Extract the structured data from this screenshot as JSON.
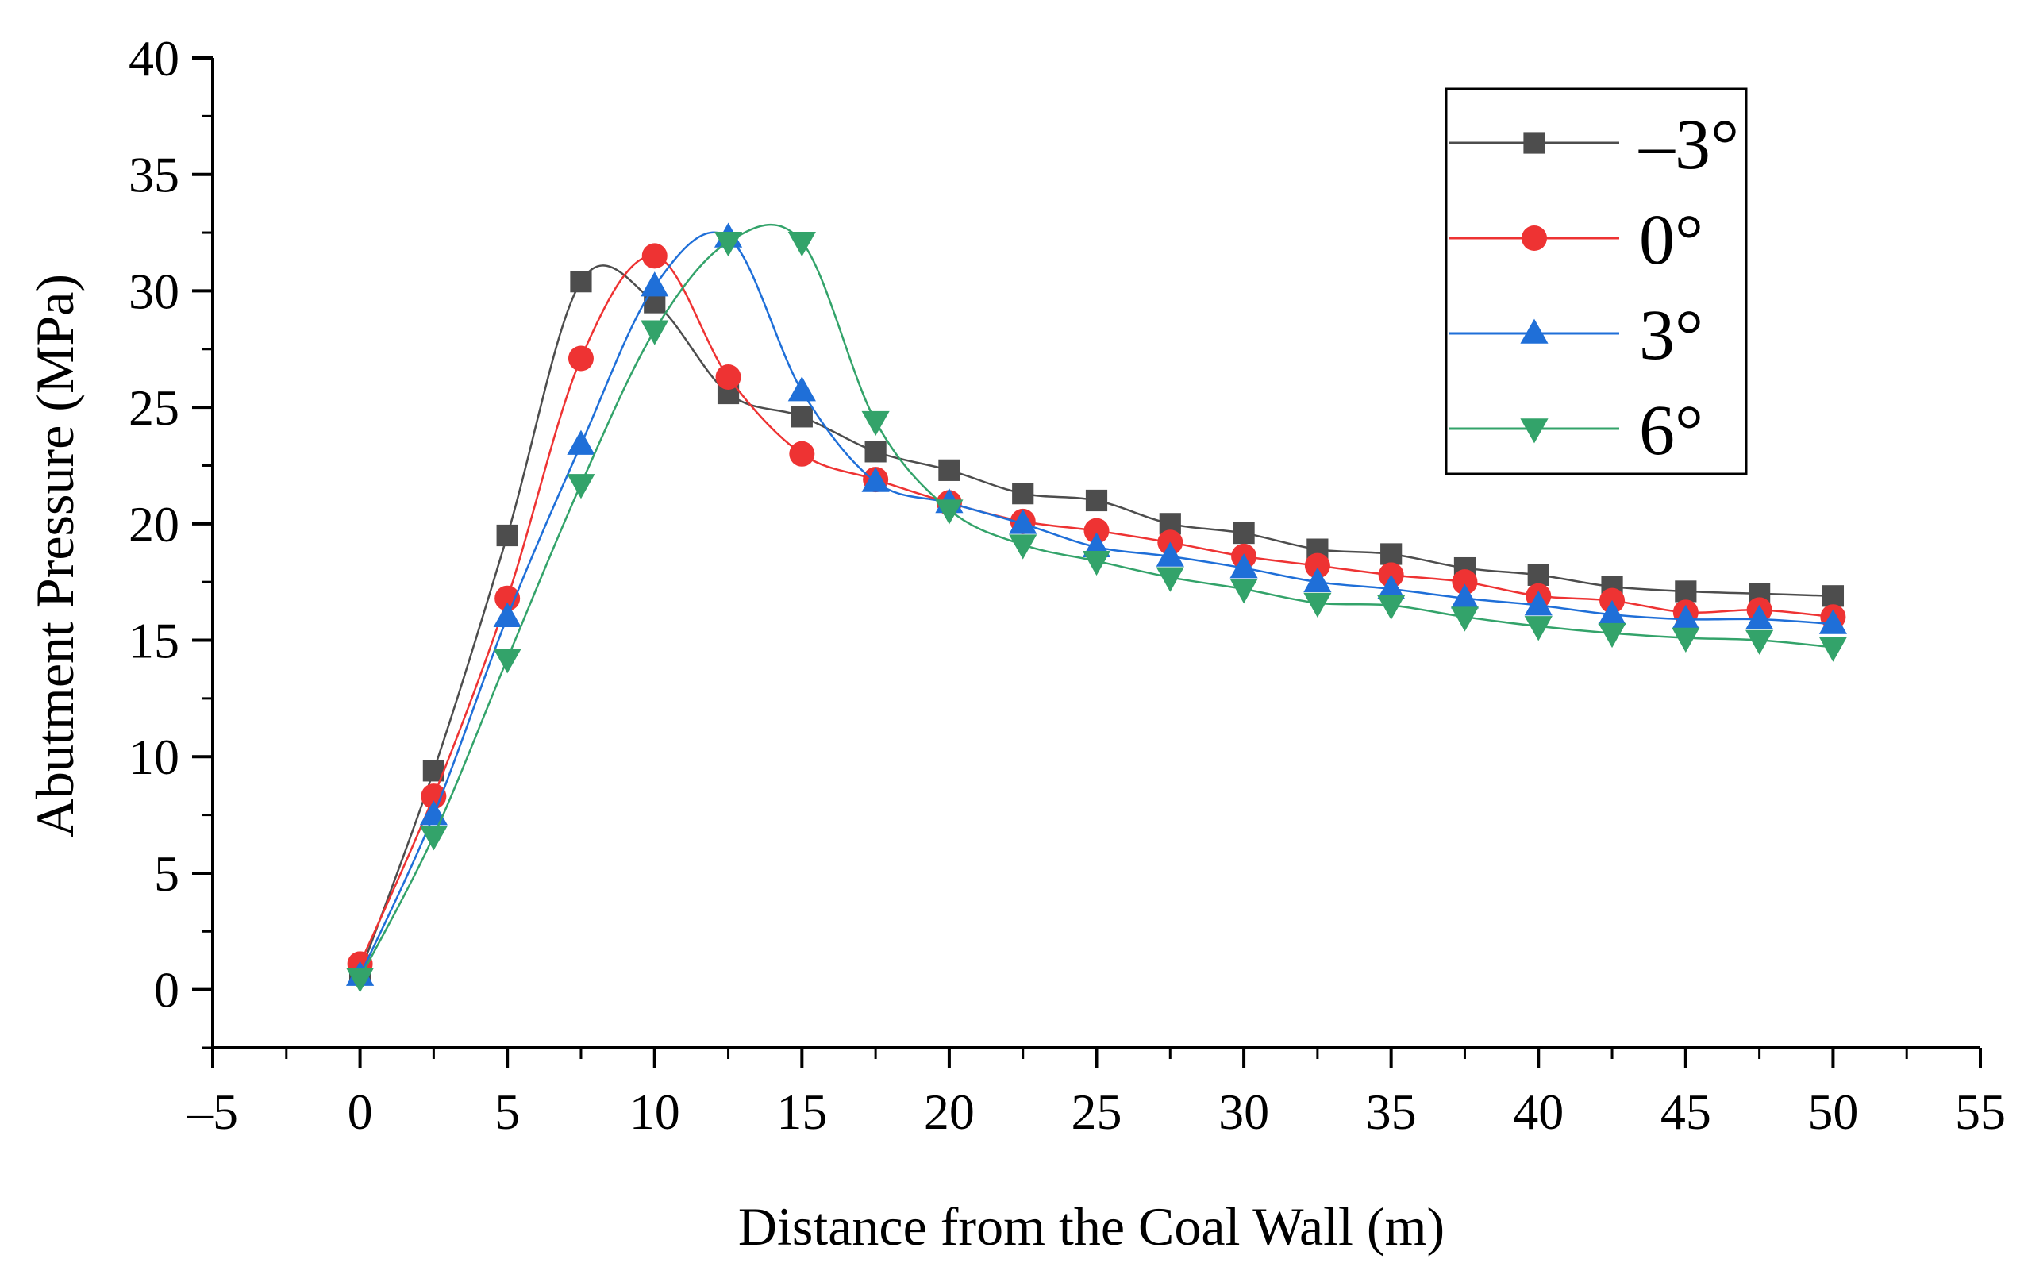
{
  "chart_data": {
    "type": "line",
    "xlabel": "Distance from the Coal Wall (m)",
    "ylabel": "Abutment Pressure (MPa)",
    "xlim": [
      -5,
      55
    ],
    "ylim": [
      -2.5,
      40
    ],
    "x_ticks": [
      -5,
      0,
      5,
      10,
      15,
      20,
      25,
      30,
      35,
      40,
      45,
      50,
      55
    ],
    "x_tick_labels": [
      "–5",
      "0",
      "5",
      "10",
      "15",
      "20",
      "25",
      "30",
      "35",
      "40",
      "45",
      "50",
      "55"
    ],
    "y_ticks": [
      0,
      5,
      10,
      15,
      20,
      25,
      30,
      35,
      40
    ],
    "y_tick_labels": [
      "0",
      "5",
      "10",
      "15",
      "20",
      "25",
      "30",
      "35",
      "40"
    ],
    "grid": false,
    "legend_position": "top-right",
    "x": [
      0,
      2.5,
      5,
      7.5,
      10,
      12.5,
      15,
      17.5,
      20,
      22.5,
      25,
      27.5,
      30,
      32.5,
      35,
      37.5,
      40,
      42.5,
      45,
      47.5,
      50
    ],
    "series": [
      {
        "name": "–3°",
        "color": "#4d4d4d",
        "marker": "square",
        "values": [
          0.7,
          9.4,
          19.5,
          30.4,
          29.5,
          25.6,
          24.6,
          23.1,
          22.3,
          21.3,
          21.0,
          20.0,
          19.6,
          18.9,
          18.7,
          18.1,
          17.8,
          17.3,
          17.1,
          17.0,
          16.9
        ]
      },
      {
        "name": "0°",
        "color": "#ee3333",
        "marker": "circle",
        "values": [
          1.1,
          8.3,
          16.8,
          27.1,
          31.5,
          26.3,
          23.0,
          21.9,
          20.9,
          20.1,
          19.7,
          19.2,
          18.6,
          18.2,
          17.8,
          17.5,
          16.9,
          16.7,
          16.2,
          16.3,
          16.0
        ]
      },
      {
        "name": "3°",
        "color": "#1f6fd8",
        "marker": "triangle-up",
        "values": [
          0.6,
          7.5,
          16.0,
          23.4,
          30.2,
          32.3,
          25.7,
          21.8,
          20.9,
          20.0,
          19.0,
          18.6,
          18.1,
          17.5,
          17.2,
          16.8,
          16.5,
          16.1,
          15.9,
          15.9,
          15.7
        ]
      },
      {
        "name": "6°",
        "color": "#33a36a",
        "marker": "triangle-down",
        "values": [
          0.5,
          6.6,
          14.2,
          21.7,
          28.3,
          32.1,
          32.1,
          24.4,
          20.6,
          19.1,
          18.4,
          17.7,
          17.2,
          16.6,
          16.5,
          16.0,
          15.6,
          15.3,
          15.1,
          15.0,
          14.7
        ]
      }
    ]
  }
}
